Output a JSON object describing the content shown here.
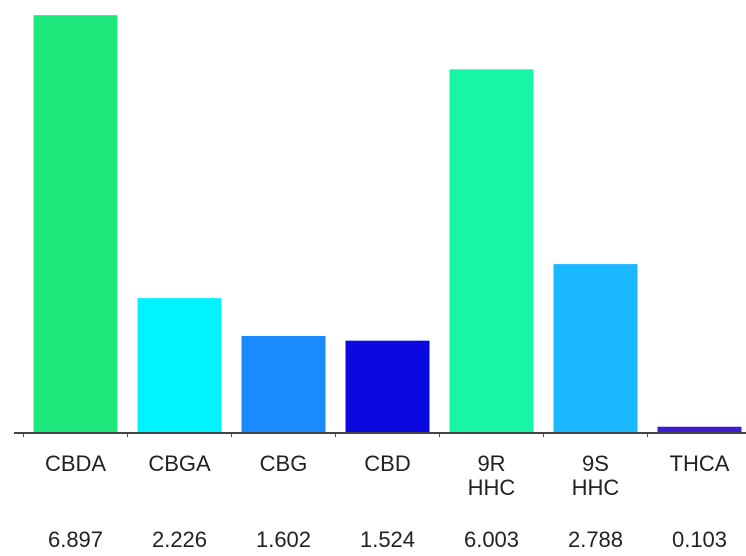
{
  "chart_data": {
    "type": "bar",
    "categories": [
      "CBDA",
      "CBGA",
      "CBG",
      "CBD",
      "9R\nHHC",
      "9S\nHHC",
      "THCA"
    ],
    "values": [
      6.897,
      2.226,
      1.602,
      1.524,
      6.003,
      2.788,
      0.103
    ],
    "colors": [
      "#1de87c",
      "#00f4ff",
      "#1a8aff",
      "#0a0ae0",
      "#18f5a6",
      "#1ab8ff",
      "#3c1ccc"
    ],
    "ylim": [
      0,
      6.9
    ]
  }
}
